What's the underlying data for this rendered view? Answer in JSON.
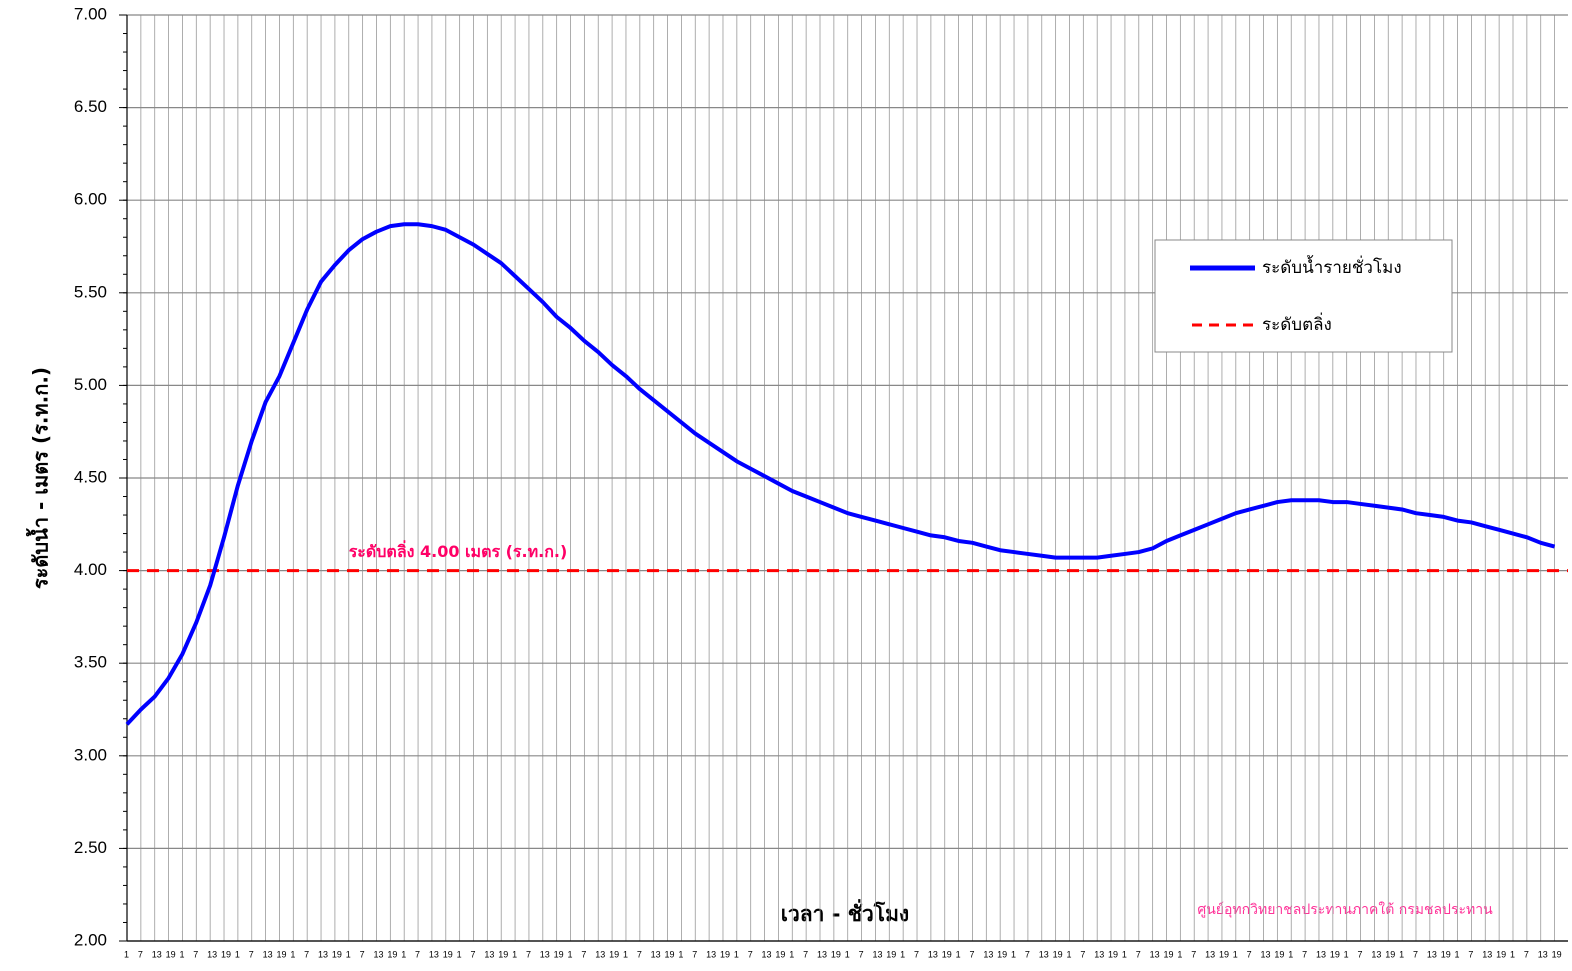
{
  "chart_data": {
    "type": "line",
    "x_label": "เวลา - ชั่วโมง",
    "y_label": "ระดับน้ำ - เมตร (ร.ท.ก.)",
    "credit": "ศูนย์อุทกวิทยาชลประทานภาคใต้  กรมชลประทาน",
    "ylim": [
      2,
      7
    ],
    "yticks": [
      {
        "value": 2,
        "label": "2.00"
      },
      {
        "value": 2.5,
        "label": "2.50"
      },
      {
        "value": 3,
        "label": "3.00"
      },
      {
        "value": 3.5,
        "label": "3.50"
      },
      {
        "value": 4,
        "label": "4.00"
      },
      {
        "value": 4.5,
        "label": "4.50"
      },
      {
        "value": 5,
        "label": "5.00"
      },
      {
        "value": 5.5,
        "label": "5.50"
      },
      {
        "value": 6,
        "label": "6.00"
      },
      {
        "value": 6.5,
        "label": "6.50"
      },
      {
        "value": 7,
        "label": "7.00"
      }
    ],
    "grid": true,
    "categories": [
      "1",
      "7",
      "13",
      "19",
      "1",
      "7",
      "13",
      "19",
      "1",
      "7",
      "13",
      "19",
      "1",
      "7",
      "13",
      "19",
      "1",
      "7",
      "13",
      "19",
      "1",
      "7",
      "13",
      "19",
      "1",
      "7",
      "13",
      "19",
      "1",
      "7",
      "13",
      "19",
      "1",
      "7",
      "13",
      "19",
      "1",
      "7",
      "13",
      "19",
      "1",
      "7",
      "13",
      "19",
      "1",
      "7",
      "13",
      "19",
      "1",
      "7",
      "13",
      "19",
      "1",
      "7",
      "13",
      "19",
      "1",
      "7",
      "13",
      "19",
      "1",
      "7",
      "13",
      "19",
      "1",
      "7",
      "13",
      "19",
      "1",
      "7",
      "13",
      "19",
      "1",
      "7",
      "13",
      "19",
      "1",
      "7",
      "13",
      "19",
      "1",
      "7",
      "13",
      "19",
      "1",
      "7",
      "13",
      "19",
      "1",
      "7",
      "13",
      "19",
      "1",
      "7",
      "13",
      "19",
      "1",
      "7",
      "13",
      "19",
      "1",
      "7",
      "13",
      "19"
    ],
    "series": [
      {
        "name": "ระดับน้ำรายชั่วโมง",
        "color": "#0000ff",
        "values": [
          3.17,
          3.25,
          3.32,
          3.42,
          3.55,
          3.72,
          3.92,
          4.18,
          4.46,
          4.7,
          4.91,
          5.05,
          5.23,
          5.41,
          5.56,
          5.65,
          5.73,
          5.79,
          5.83,
          5.86,
          5.87,
          5.87,
          5.86,
          5.84,
          5.8,
          5.76,
          5.71,
          5.66,
          5.59,
          5.52,
          5.45,
          5.37,
          5.31,
          5.24,
          5.18,
          5.11,
          5.05,
          4.98,
          4.92,
          4.86,
          4.8,
          4.74,
          4.69,
          4.64,
          4.59,
          4.55,
          4.51,
          4.47,
          4.43,
          4.4,
          4.37,
          4.34,
          4.31,
          4.29,
          4.27,
          4.25,
          4.23,
          4.21,
          4.19,
          4.18,
          4.16,
          4.15,
          4.13,
          4.11,
          4.1,
          4.09,
          4.08,
          4.07,
          4.07,
          4.07,
          4.07,
          4.08,
          4.09,
          4.1,
          4.12,
          4.16,
          4.19,
          4.22,
          4.25,
          4.28,
          4.31,
          4.33,
          4.35,
          4.37,
          4.38,
          4.38,
          4.38,
          4.37,
          4.37,
          4.36,
          4.35,
          4.34,
          4.33,
          4.31,
          4.3,
          4.29,
          4.27,
          4.26,
          4.24,
          4.22,
          4.2,
          4.18,
          4.15,
          4.13
        ]
      }
    ],
    "threshold": {
      "name": "ระดับตลิ่ง",
      "value": 4,
      "color": "#ff0000",
      "annotation": "ระดับตลิ่ง 4.00 เมตร (ร.ท.ก.)",
      "annotation_color": "#ff0066"
    }
  }
}
